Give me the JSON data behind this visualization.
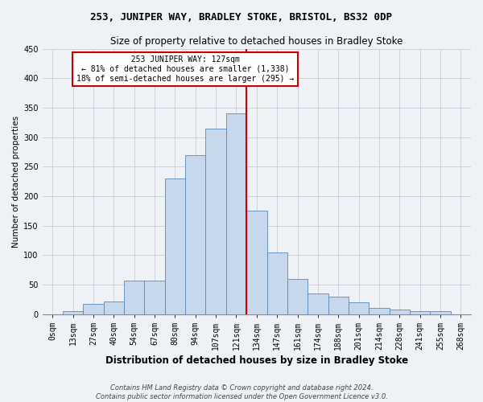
{
  "title": "253, JUNIPER WAY, BRADLEY STOKE, BRISTOL, BS32 0DP",
  "subtitle": "Size of property relative to detached houses in Bradley Stoke",
  "xlabel": "Distribution of detached houses by size in Bradley Stoke",
  "ylabel": "Number of detached properties",
  "footer_line1": "Contains HM Land Registry data © Crown copyright and database right 2024.",
  "footer_line2": "Contains public sector information licensed under the Open Government Licence v3.0.",
  "annotation_line1": "253 JUNIPER WAY: 127sqm",
  "annotation_line2": "← 81% of detached houses are smaller (1,338)",
  "annotation_line3": "18% of semi-detached houses are larger (295) →",
  "bar_labels": [
    "0sqm",
    "13sqm",
    "27sqm",
    "40sqm",
    "54sqm",
    "67sqm",
    "80sqm",
    "94sqm",
    "107sqm",
    "121sqm",
    "134sqm",
    "147sqm",
    "161sqm",
    "174sqm",
    "188sqm",
    "201sqm",
    "214sqm",
    "228sqm",
    "241sqm",
    "255sqm",
    "268sqm"
  ],
  "bar_values": [
    0,
    5,
    17,
    22,
    57,
    57,
    230,
    270,
    315,
    340,
    175,
    105,
    60,
    35,
    30,
    20,
    10,
    8,
    5,
    5,
    0
  ],
  "bar_width": 1.0,
  "bar_color": "#c8d8ec",
  "bar_edge_color": "#5588bb",
  "vline_color": "#cc0000",
  "vline_x": 9.5,
  "annotation_box_color": "#cc0000",
  "background_color": "#eef2f7",
  "grid_color": "#c8cdd4",
  "ylim": [
    0,
    450
  ],
  "yticks": [
    0,
    50,
    100,
    150,
    200,
    250,
    300,
    350,
    400,
    450
  ],
  "title_fontsize": 9,
  "subtitle_fontsize": 8.5,
  "xlabel_fontsize": 8.5,
  "ylabel_fontsize": 7.5,
  "tick_fontsize": 7,
  "annotation_fontsize": 7,
  "footer_fontsize": 6
}
